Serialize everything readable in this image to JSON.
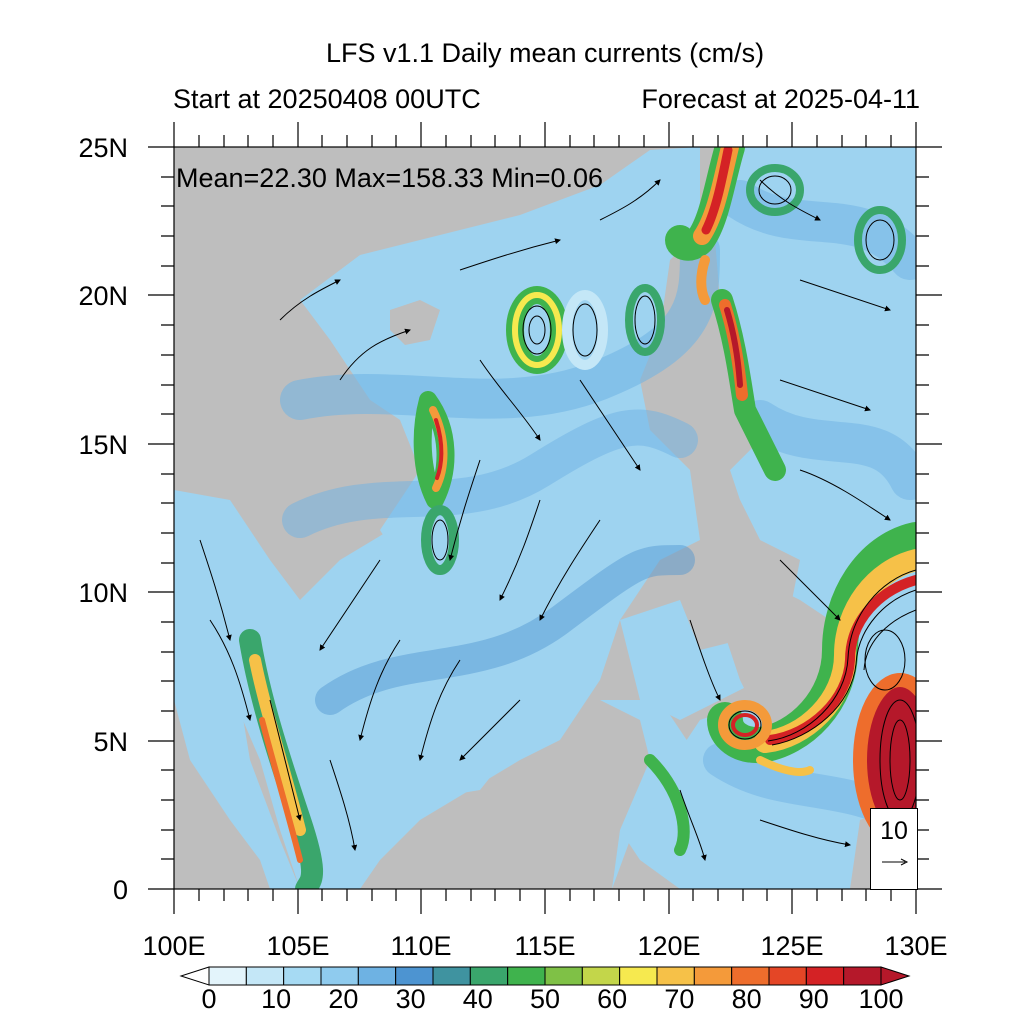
{
  "title": "LFS v1.1 Daily mean currents (cm/s)",
  "subtitle_left": "Start at 20250408 00UTC",
  "subtitle_right": "Forecast at 2025-04-11",
  "stats": "Mean=22.30  Max=158.33  Min=0.06",
  "reference_vector": {
    "label": "10"
  },
  "lat_axis": [
    "25N",
    "20N",
    "15N",
    "10N",
    "5N",
    "0"
  ],
  "lon_axis": [
    "100E",
    "105E",
    "110E",
    "115E",
    "120E",
    "125E",
    "130E"
  ],
  "map": {
    "lon_range": [
      100,
      130
    ],
    "lat_range": [
      0,
      25
    ],
    "land_color": "#bebebe",
    "sea_base_color": "#9ed3f0"
  },
  "colorbar": {
    "labels": [
      "0",
      "10",
      "20",
      "30",
      "40",
      "50",
      "60",
      "70",
      "80",
      "90",
      "100"
    ],
    "colors": [
      "#e3f4fb",
      "#c4e7f7",
      "#a6daf3",
      "#8fcbee",
      "#6eb2e3",
      "#4d94d1",
      "#3f93a0",
      "#3aa66c",
      "#3fb34d",
      "#7fc146",
      "#c3d64a",
      "#f6e94f",
      "#f6c148",
      "#f49a3a",
      "#ee6d2c",
      "#e44626",
      "#d42225",
      "#b5182a"
    ]
  }
}
